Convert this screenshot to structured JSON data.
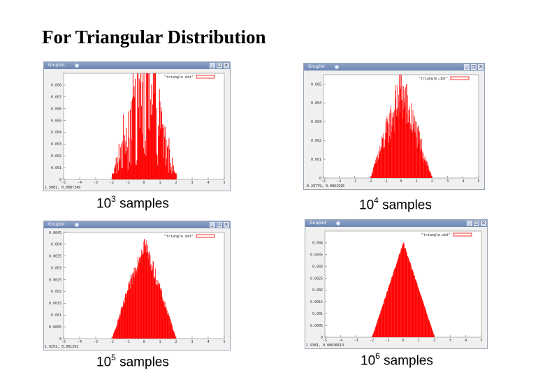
{
  "heading": "For Triangular Distribution",
  "window_title": "Gnuplot",
  "window_buttons": [
    "_",
    "□",
    "×"
  ],
  "colors": {
    "bar": "#ff0000",
    "plot_bg": "#ffffff",
    "window_bg": "#f0f0f0",
    "titlebar": "#7a91bd"
  },
  "panels": [
    {
      "caption_base": "10",
      "caption_exp": "3",
      "caption_suffix": " samples",
      "legend_label": "\"triangle.dat\"",
      "status_text": "1.5081,   0.0087349",
      "y_ticks": [
        "0",
        "0.001",
        "0.002",
        "0.003",
        "0.004",
        "0.005",
        "0.006",
        "0.007",
        "0.008"
      ],
      "x_ticks": [
        "-5",
        "-4",
        "-3",
        "-2",
        "-1",
        "0",
        "1",
        "2",
        "3",
        "4",
        "5"
      ],
      "chart_data": {
        "type": "bar",
        "title": "",
        "xlabel": "",
        "ylabel": "",
        "xlim": [
          -5,
          5
        ],
        "ylim": [
          0,
          0.009
        ],
        "peak": 0.0085,
        "noise": 0.85,
        "floor": 0.0005,
        "samples": "10^3"
      }
    },
    {
      "caption_base": "10",
      "caption_exp": "4",
      "caption_suffix": " samples",
      "legend_label": "\"triangle.dat\"",
      "status_text": "-0.29779,   0.0061916",
      "y_ticks": [
        "0",
        "0.001",
        "0.002",
        "0.003",
        "0.004",
        "0.005"
      ],
      "x_ticks": [
        "-5",
        "-4",
        "-3",
        "-2",
        "-1",
        "0",
        "1",
        "2",
        "3",
        "4",
        "5"
      ],
      "chart_data": {
        "type": "bar",
        "title": "",
        "xlabel": "",
        "ylabel": "",
        "xlim": [
          -5,
          5
        ],
        "ylim": [
          0,
          0.0055
        ],
        "peak": 0.0046,
        "noise": 0.35,
        "floor": 0.0,
        "samples": "10^4"
      }
    },
    {
      "caption_base": "10",
      "caption_exp": "5",
      "caption_suffix": " samples",
      "legend_label": "\"triangle.dat\"",
      "status_text": "1.9291,   0.001291",
      "y_ticks": [
        "0",
        "0.0005",
        "0.001",
        "0.0015",
        "0.002",
        "0.0025",
        "0.003",
        "0.0035",
        "0.004",
        "0.0045"
      ],
      "x_ticks": [
        "-5",
        "-4",
        "-3",
        "-2",
        "-1",
        "0",
        "1",
        "2",
        "3",
        "4",
        "5"
      ],
      "chart_data": {
        "type": "bar",
        "title": "",
        "xlabel": "",
        "ylabel": "",
        "xlim": [
          -5,
          5
        ],
        "ylim": [
          0,
          0.0045
        ],
        "peak": 0.0041,
        "noise": 0.12,
        "floor": 0.0,
        "samples": "10^5"
      }
    },
    {
      "caption_base": "10",
      "caption_exp": "6",
      "caption_suffix": " samples",
      "legend_label": "\"triangle.dat\"",
      "status_text": "1.9381,   0.00036613",
      "y_ticks": [
        "0",
        "0.0005",
        "0.001",
        "0.0015",
        "0.002",
        "0.0025",
        "0.003",
        "0.0035",
        "0.004"
      ],
      "x_ticks": [
        "-5",
        "-4",
        "-3",
        "-2",
        "-1",
        "0",
        "1",
        "2",
        "3",
        "4",
        "5"
      ],
      "chart_data": {
        "type": "bar",
        "title": "",
        "xlabel": "",
        "ylabel": "",
        "xlim": [
          -5,
          5
        ],
        "ylim": [
          0,
          0.0045
        ],
        "peak": 0.004,
        "noise": 0.02,
        "floor": 0.0,
        "samples": "10^6"
      }
    }
  ]
}
